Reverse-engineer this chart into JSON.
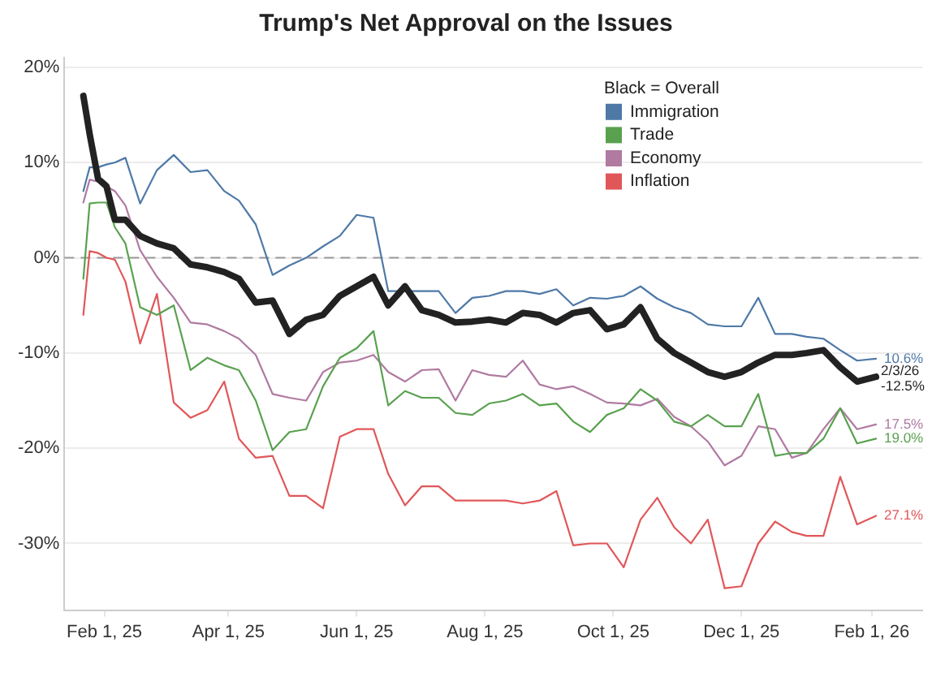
{
  "chart_data": {
    "type": "line",
    "title": "Trump's Net Approval on the Issues",
    "legend_title": "Black = Overall",
    "legend": "top right",
    "grid": "y",
    "marker": "none",
    "line_style": "solid",
    "xlim": [
      "2025-01-13",
      "2026-02-25"
    ],
    "xticks": [
      {
        "value": "2025-02-01",
        "label": "Feb 1, 25"
      },
      {
        "value": "2025-04-01",
        "label": "Apr 1, 25"
      },
      {
        "value": "2025-06-01",
        "label": "Jun 1, 25"
      },
      {
        "value": "2025-08-01",
        "label": "Aug 1, 25"
      },
      {
        "value": "2025-10-01",
        "label": "Oct 1, 25"
      },
      {
        "value": "2025-12-01",
        "label": "Dec 1, 25"
      },
      {
        "value": "2026-02-01",
        "label": "Feb 1, 26"
      }
    ],
    "ylim": [
      -37,
      21
    ],
    "yticks": [
      {
        "value": 20,
        "label": "20%"
      },
      {
        "value": 10,
        "label": "10%"
      },
      {
        "value": 0,
        "label": "0%"
      },
      {
        "value": -10,
        "label": "-10%"
      },
      {
        "value": -20,
        "label": "-20%"
      },
      {
        "value": -30,
        "label": "-30%"
      }
    ],
    "ref_lines": [
      {
        "axis": "y",
        "value": 0,
        "label": null,
        "color": "#999999",
        "line_style": "dashed"
      }
    ],
    "annotations": [
      {
        "text": "2/3/26",
        "x": "2026-02-03",
        "y": -12.5
      },
      {
        "text": "10.6%",
        "x": "2026-02-03",
        "y": -10.6
      },
      {
        "text": "17.5%",
        "x": "2026-02-03",
        "y": -17.5
      },
      {
        "text": "19.0%",
        "x": "2026-02-03",
        "y": -19.0
      },
      {
        "text": "27.1%",
        "x": "2026-02-03",
        "y": -27.1
      }
    ],
    "x": [
      "2025-01-22",
      "2025-01-25",
      "2025-01-29",
      "2025-02-02",
      "2025-02-06",
      "2025-02-11",
      "2025-02-18",
      "2025-02-26",
      "2025-03-06",
      "2025-03-14",
      "2025-03-22",
      "2025-03-30",
      "2025-04-06",
      "2025-04-14",
      "2025-04-22",
      "2025-04-30",
      "2025-05-08",
      "2025-05-16",
      "2025-05-24",
      "2025-06-01",
      "2025-06-09",
      "2025-06-16",
      "2025-06-24",
      "2025-07-02",
      "2025-07-10",
      "2025-07-18",
      "2025-07-26",
      "2025-08-03",
      "2025-08-11",
      "2025-08-19",
      "2025-08-27",
      "2025-09-04",
      "2025-09-12",
      "2025-09-20",
      "2025-09-28",
      "2025-10-06",
      "2025-10-14",
      "2025-10-22",
      "2025-10-30",
      "2025-11-07",
      "2025-11-15",
      "2025-11-23",
      "2025-12-01",
      "2025-12-09",
      "2025-12-17",
      "2025-12-25",
      "2026-01-01",
      "2026-01-09",
      "2026-01-17",
      "2026-01-25",
      "2026-02-03"
    ],
    "series": [
      {
        "name": "Immigration",
        "color": "#4e79a7",
        "values": [
          7,
          9.5,
          9.5,
          9.8,
          10,
          10.5,
          5.7,
          9.2,
          10.8,
          9,
          9.2,
          7,
          6,
          3.5,
          -1.8,
          -0.8,
          0,
          1.2,
          2.3,
          4.5,
          4.2,
          -3.5,
          -3.5,
          -3.5,
          -3.5,
          -5.8,
          -4.2,
          -4,
          -3.5,
          -3.5,
          -3.8,
          -3.3,
          -5,
          -4.2,
          -4.3,
          -4,
          -3,
          -4.3,
          -5.2,
          -5.8,
          -7,
          -7.2,
          -7.2,
          -4.2,
          -8,
          -8,
          -8.3,
          -8.5,
          -9.7,
          -10.8,
          -10.6
        ]
      },
      {
        "name": "Trade",
        "color": "#59a14f",
        "values": [
          -2.2,
          5.7,
          5.8,
          5.8,
          3.2,
          1.5,
          -5.2,
          -6,
          -5,
          -11.8,
          -10.5,
          -11.3,
          -11.8,
          -15,
          -20.2,
          -18.3,
          -18,
          -13.5,
          -10.5,
          -9.5,
          -7.7,
          -15.5,
          -14,
          -14.7,
          -14.7,
          -16.3,
          -16.5,
          -15.3,
          -15,
          -14.3,
          -15.5,
          -15.3,
          -17.2,
          -18.3,
          -16.5,
          -15.8,
          -13.8,
          -15,
          -17.2,
          -17.7,
          -16.5,
          -17.7,
          -17.7,
          -14.3,
          -20.8,
          -20.5,
          -20.5,
          -19,
          -15.8,
          -19.5,
          -19.0
        ]
      },
      {
        "name": "Economy",
        "color": "#b07aa1",
        "values": [
          5.8,
          8.2,
          8,
          7.5,
          7,
          5.5,
          0.8,
          -2,
          -4.2,
          -6.8,
          -7,
          -7.7,
          -8.5,
          -10.2,
          -14.3,
          -14.7,
          -15,
          -12,
          -11,
          -10.8,
          -10.2,
          -12,
          -13,
          -11.8,
          -11.7,
          -15,
          -11.8,
          -12.3,
          -12.5,
          -10.8,
          -13.3,
          -13.8,
          -13.5,
          -14.3,
          -15.2,
          -15.3,
          -15.5,
          -14.8,
          -16.7,
          -17.7,
          -19.3,
          -21.8,
          -20.8,
          -17.7,
          -18,
          -21,
          -20.5,
          -18,
          -15.8,
          -18,
          -17.5
        ]
      },
      {
        "name": "Inflation",
        "color": "#e15759",
        "values": [
          -6,
          0.7,
          0.5,
          0,
          -0.2,
          -2.5,
          -9,
          -3.8,
          -15.2,
          -16.8,
          -16,
          -13,
          -19,
          -21,
          -20.8,
          -25,
          -25,
          -26.3,
          -18.8,
          -18,
          -18,
          -22.7,
          -26,
          -24,
          -24,
          -25.5,
          -25.5,
          -25.5,
          -25.5,
          -25.8,
          -25.5,
          -24.5,
          -30.2,
          -30,
          -30,
          -32.5,
          -27.5,
          -25.2,
          -28.3,
          -30,
          -27.5,
          -34.7,
          -34.5,
          -30,
          -27.7,
          -28.8,
          -29.2,
          -29.2,
          -23,
          -28,
          -27.1
        ]
      },
      {
        "color": "#222222",
        "values": [
          17,
          13,
          8.3,
          7.5,
          4,
          4,
          2.3,
          1.5,
          1,
          -0.7,
          -1,
          -1.5,
          -2.2,
          -4.7,
          -4.5,
          -8,
          -6.5,
          -6,
          -4,
          -3,
          -2,
          -5,
          -3,
          -5.5,
          -6,
          -6.8,
          -6.7,
          -6.5,
          -6.8,
          -5.8,
          -6,
          -6.8,
          -5.8,
          -5.5,
          -7.5,
          -7,
          -5.2,
          -8.5,
          -10,
          -11,
          -12,
          -12.5,
          -12,
          -11,
          -10.2,
          -10.2,
          -10,
          -9.7,
          -11.5,
          -13,
          -12.5
        ],
        "value_labels": [
          null,
          null,
          null,
          null,
          null,
          null,
          null,
          null,
          null,
          null,
          null,
          null,
          null,
          null,
          null,
          null,
          null,
          null,
          null,
          null,
          null,
          null,
          null,
          null,
          null,
          null,
          null,
          null,
          null,
          null,
          null,
          null,
          null,
          null,
          null,
          null,
          null,
          null,
          null,
          null,
          null,
          null,
          null,
          null,
          null,
          null,
          null,
          null,
          null,
          null,
          "-12.5%"
        ]
      }
    ]
  }
}
